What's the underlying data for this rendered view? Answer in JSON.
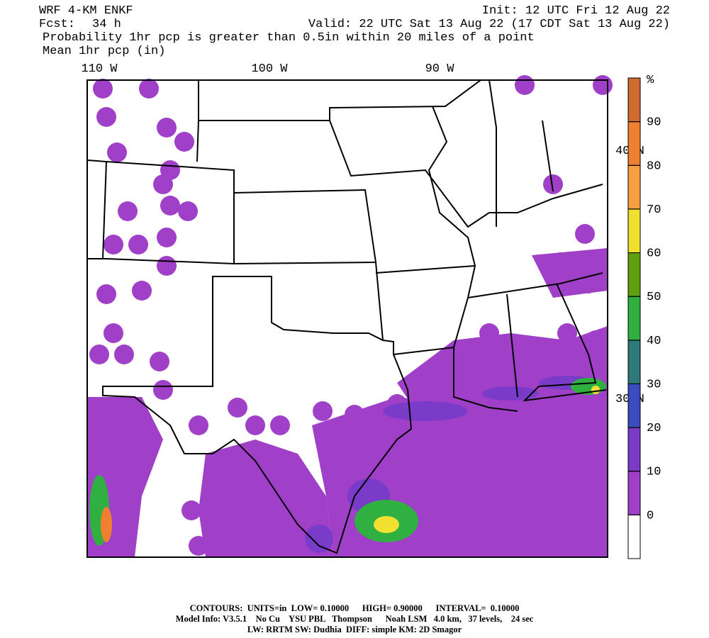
{
  "header": {
    "model": "WRF 4-KM ENKF",
    "init": "Init: 12 UTC Fri 12 Aug 22",
    "fcst_label": "Fcst:",
    "fcst_value": "34 h",
    "valid": "Valid: 22 UTC Sat 13 Aug 22 (17 CDT Sat 13 Aug 22)",
    "field": "Probability 1hr pcp is greater than 0.5in within 20 miles of a point",
    "contour_field": "Mean 1hr pcp (in)"
  },
  "map": {
    "lon_labels": [
      "110 W",
      "100 W",
      "90 W"
    ],
    "lat_labels": [
      "40 N",
      "30 N"
    ]
  },
  "colorbar": {
    "unit": "%",
    "ticks": [
      0,
      10,
      20,
      30,
      40,
      50,
      60,
      70,
      80,
      90
    ],
    "colors": [
      "#ffffff",
      "#a040c8",
      "#7a3cc8",
      "#3c4cc0",
      "#2e7a7a",
      "#30b040",
      "#60a010",
      "#f0e030",
      "#f8a040",
      "#f08030",
      "#d06a30"
    ]
  },
  "footer": {
    "contours": "CONTOURS:  UNITS=in  LOW= 0.10000      HIGH= 0.90000      INTERVAL=  0.10000",
    "model_info": "Model Info: V3.5.1    No Cu    YSU PBL   Thompson      Noah LSM   4.0 km,   37 levels,    24 sec",
    "physics": "LW: RRTM SW: Dudhia  DIFF: simple KM: 2D Smagor"
  }
}
